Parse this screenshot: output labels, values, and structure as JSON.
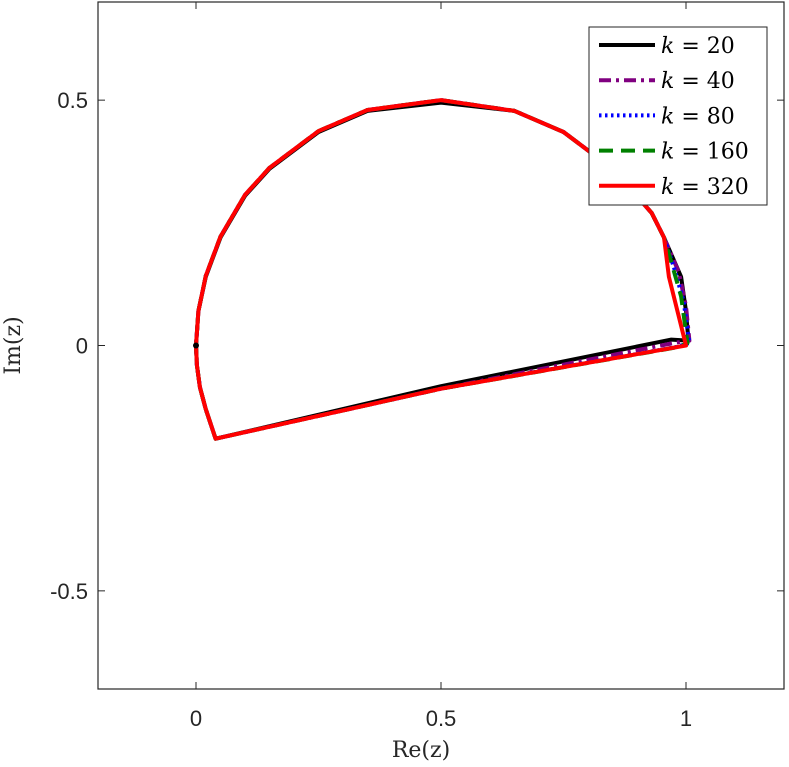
{
  "chart_data": {
    "type": "line",
    "title": "",
    "xlabel": "Re(z)",
    "ylabel": "Im(z)",
    "xlim": [
      -0.2,
      1.2
    ],
    "ylim": [
      -0.7,
      0.7
    ],
    "xticks": [
      0,
      0.5,
      1
    ],
    "xtick_labels": [
      "0",
      "0.5",
      "1"
    ],
    "yticks": [
      -0.5,
      0,
      0.5
    ],
    "ytick_labels": [
      "-0.5",
      "0",
      "0.5"
    ],
    "grid": false,
    "legend_position": "top-right",
    "series": [
      {
        "name": "k = 20",
        "legend_var": "k",
        "legend_val": "20",
        "color": "#000000",
        "dash": "solid",
        "points": [
          [
            0,
            0
          ],
          [
            0.0018,
            -0.04
          ],
          [
            0.008,
            -0.085
          ],
          [
            0.02,
            -0.13
          ],
          [
            0.04,
            -0.19
          ],
          [
            0.5,
            -0.083
          ],
          [
            0.97,
            0.012
          ],
          [
            1.005,
            0.01
          ],
          [
            1.0,
            0.07
          ],
          [
            0.99,
            0.14
          ],
          [
            0.955,
            0.22
          ],
          [
            0.93,
            0.27
          ],
          [
            0.85,
            0.36
          ],
          [
            0.75,
            0.435
          ],
          [
            0.65,
            0.478
          ],
          [
            0.5,
            0.495
          ],
          [
            0.35,
            0.478
          ],
          [
            0.25,
            0.435
          ],
          [
            0.15,
            0.36
          ],
          [
            0.1,
            0.305
          ],
          [
            0.05,
            0.22
          ],
          [
            0.02,
            0.14
          ],
          [
            0.005,
            0.07
          ],
          [
            0,
            0
          ]
        ]
      },
      {
        "name": "k = 40",
        "legend_var": "k",
        "legend_val": "40",
        "color": "#800080",
        "dash": "dashdot",
        "points": [
          [
            0,
            0
          ],
          [
            0.0018,
            -0.04
          ],
          [
            0.008,
            -0.085
          ],
          [
            0.02,
            -0.13
          ],
          [
            0.04,
            -0.19
          ],
          [
            0.5,
            -0.088
          ],
          [
            0.975,
            0.005
          ],
          [
            1.007,
            0.01
          ],
          [
            1.0,
            0.08
          ],
          [
            0.985,
            0.15
          ],
          [
            0.955,
            0.22
          ],
          [
            0.93,
            0.27
          ],
          [
            0.85,
            0.36
          ],
          [
            0.75,
            0.435
          ],
          [
            0.65,
            0.478
          ],
          [
            0.5,
            0.5
          ],
          [
            0.35,
            0.48
          ],
          [
            0.25,
            0.437
          ],
          [
            0.15,
            0.362
          ],
          [
            0.1,
            0.307
          ],
          [
            0.05,
            0.222
          ],
          [
            0.02,
            0.142
          ],
          [
            0.005,
            0.07
          ],
          [
            0,
            0
          ]
        ]
      },
      {
        "name": "k = 80",
        "legend_var": "k",
        "legend_val": "80",
        "color": "#0000ff",
        "dash": "dotted",
        "points": [
          [
            0,
            0
          ],
          [
            0.0018,
            -0.04
          ],
          [
            0.008,
            -0.085
          ],
          [
            0.02,
            -0.13
          ],
          [
            0.04,
            -0.19
          ],
          [
            0.5,
            -0.088
          ],
          [
            0.98,
            -0.003
          ],
          [
            1.007,
            0.005
          ],
          [
            0.995,
            0.09
          ],
          [
            0.975,
            0.16
          ],
          [
            0.955,
            0.22
          ],
          [
            0.93,
            0.27
          ],
          [
            0.85,
            0.36
          ],
          [
            0.75,
            0.435
          ],
          [
            0.65,
            0.478
          ],
          [
            0.5,
            0.5
          ],
          [
            0.35,
            0.48
          ],
          [
            0.25,
            0.437
          ],
          [
            0.15,
            0.362
          ],
          [
            0.1,
            0.307
          ],
          [
            0.05,
            0.222
          ],
          [
            0.02,
            0.142
          ],
          [
            0.005,
            0.07
          ],
          [
            0,
            0
          ]
        ]
      },
      {
        "name": "k = 160",
        "legend_var": "k",
        "legend_val": "160",
        "color": "#008000",
        "dash": "dashed",
        "points": [
          [
            0,
            0
          ],
          [
            0.0018,
            -0.04
          ],
          [
            0.008,
            -0.085
          ],
          [
            0.02,
            -0.13
          ],
          [
            0.04,
            -0.19
          ],
          [
            0.5,
            -0.088
          ],
          [
            0.985,
            -0.003
          ],
          [
            1.003,
            0.005
          ],
          [
            0.99,
            0.1
          ],
          [
            0.97,
            0.17
          ],
          [
            0.955,
            0.22
          ],
          [
            0.93,
            0.27
          ],
          [
            0.85,
            0.36
          ],
          [
            0.75,
            0.435
          ],
          [
            0.65,
            0.478
          ],
          [
            0.5,
            0.5
          ],
          [
            0.35,
            0.48
          ],
          [
            0.25,
            0.437
          ],
          [
            0.15,
            0.362
          ],
          [
            0.1,
            0.307
          ],
          [
            0.05,
            0.222
          ],
          [
            0.02,
            0.142
          ],
          [
            0.005,
            0.07
          ],
          [
            0,
            0
          ]
        ]
      },
      {
        "name": "k = 320",
        "legend_var": "k",
        "legend_val": "320",
        "color": "#ff0000",
        "dash": "solid",
        "points": [
          [
            0,
            0
          ],
          [
            0.0018,
            -0.04
          ],
          [
            0.008,
            -0.085
          ],
          [
            0.02,
            -0.13
          ],
          [
            0.04,
            -0.19
          ],
          [
            0.5,
            -0.088
          ],
          [
            1.0,
            0.0
          ],
          [
            0.985,
            0.06
          ],
          [
            0.965,
            0.14
          ],
          [
            0.955,
            0.22
          ],
          [
            0.93,
            0.27
          ],
          [
            0.85,
            0.36
          ],
          [
            0.75,
            0.435
          ],
          [
            0.65,
            0.478
          ],
          [
            0.5,
            0.5
          ],
          [
            0.35,
            0.48
          ],
          [
            0.25,
            0.437
          ],
          [
            0.15,
            0.362
          ],
          [
            0.1,
            0.307
          ],
          [
            0.05,
            0.222
          ],
          [
            0.02,
            0.142
          ],
          [
            0.005,
            0.07
          ],
          [
            0,
            0
          ]
        ]
      }
    ],
    "marker_point": {
      "x": 0,
      "y": 0,
      "color": "#000000"
    }
  }
}
